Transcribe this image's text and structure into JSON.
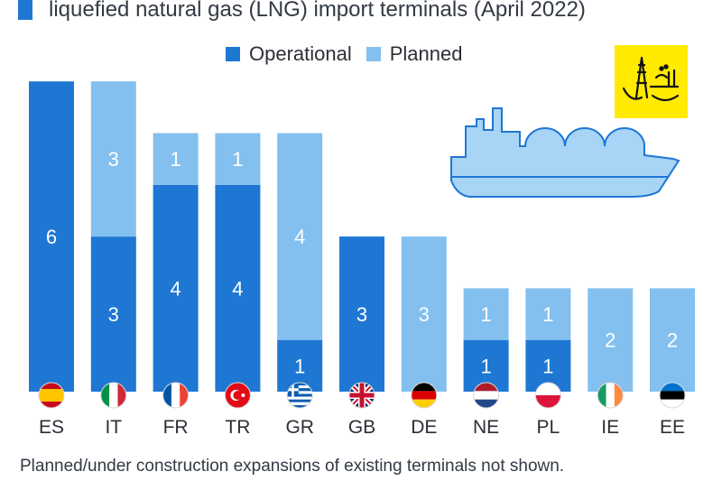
{
  "header": {
    "title": "liquefied natural gas (LNG) import terminals (April 2022)"
  },
  "legend": {
    "operational_label": "Operational",
    "planned_label": "Planned"
  },
  "footnote": "Planned/under construction expansions of existing terminals not shown.",
  "colors": {
    "operational": "#1f77d4",
    "planned": "#83c0ef",
    "ship": "#a8d4f5",
    "logo_bg": "#ffea00",
    "text": "#333a44"
  },
  "chart_data": {
    "type": "bar",
    "stacked": true,
    "categories": [
      "ES",
      "IT",
      "FR",
      "TR",
      "GR",
      "GB",
      "DE",
      "NE",
      "PL",
      "IE",
      "EE"
    ],
    "flags": [
      "spain-flag-icon",
      "italy-flag-icon",
      "france-flag-icon",
      "turkey-flag-icon",
      "greece-flag-icon",
      "uk-flag-icon",
      "germany-flag-icon",
      "netherlands-flag-icon",
      "poland-flag-icon",
      "ireland-flag-icon",
      "estonia-flag-icon"
    ],
    "series": [
      {
        "name": "Operational",
        "values": [
          6,
          3,
          4,
          4,
          1,
          3,
          0,
          1,
          1,
          0,
          0
        ]
      },
      {
        "name": "Planned",
        "values": [
          0,
          3,
          1,
          1,
          4,
          0,
          3,
          1,
          1,
          2,
          2
        ]
      }
    ],
    "ylim": [
      0,
      6
    ],
    "grid": false,
    "legend_position": "top-center"
  }
}
